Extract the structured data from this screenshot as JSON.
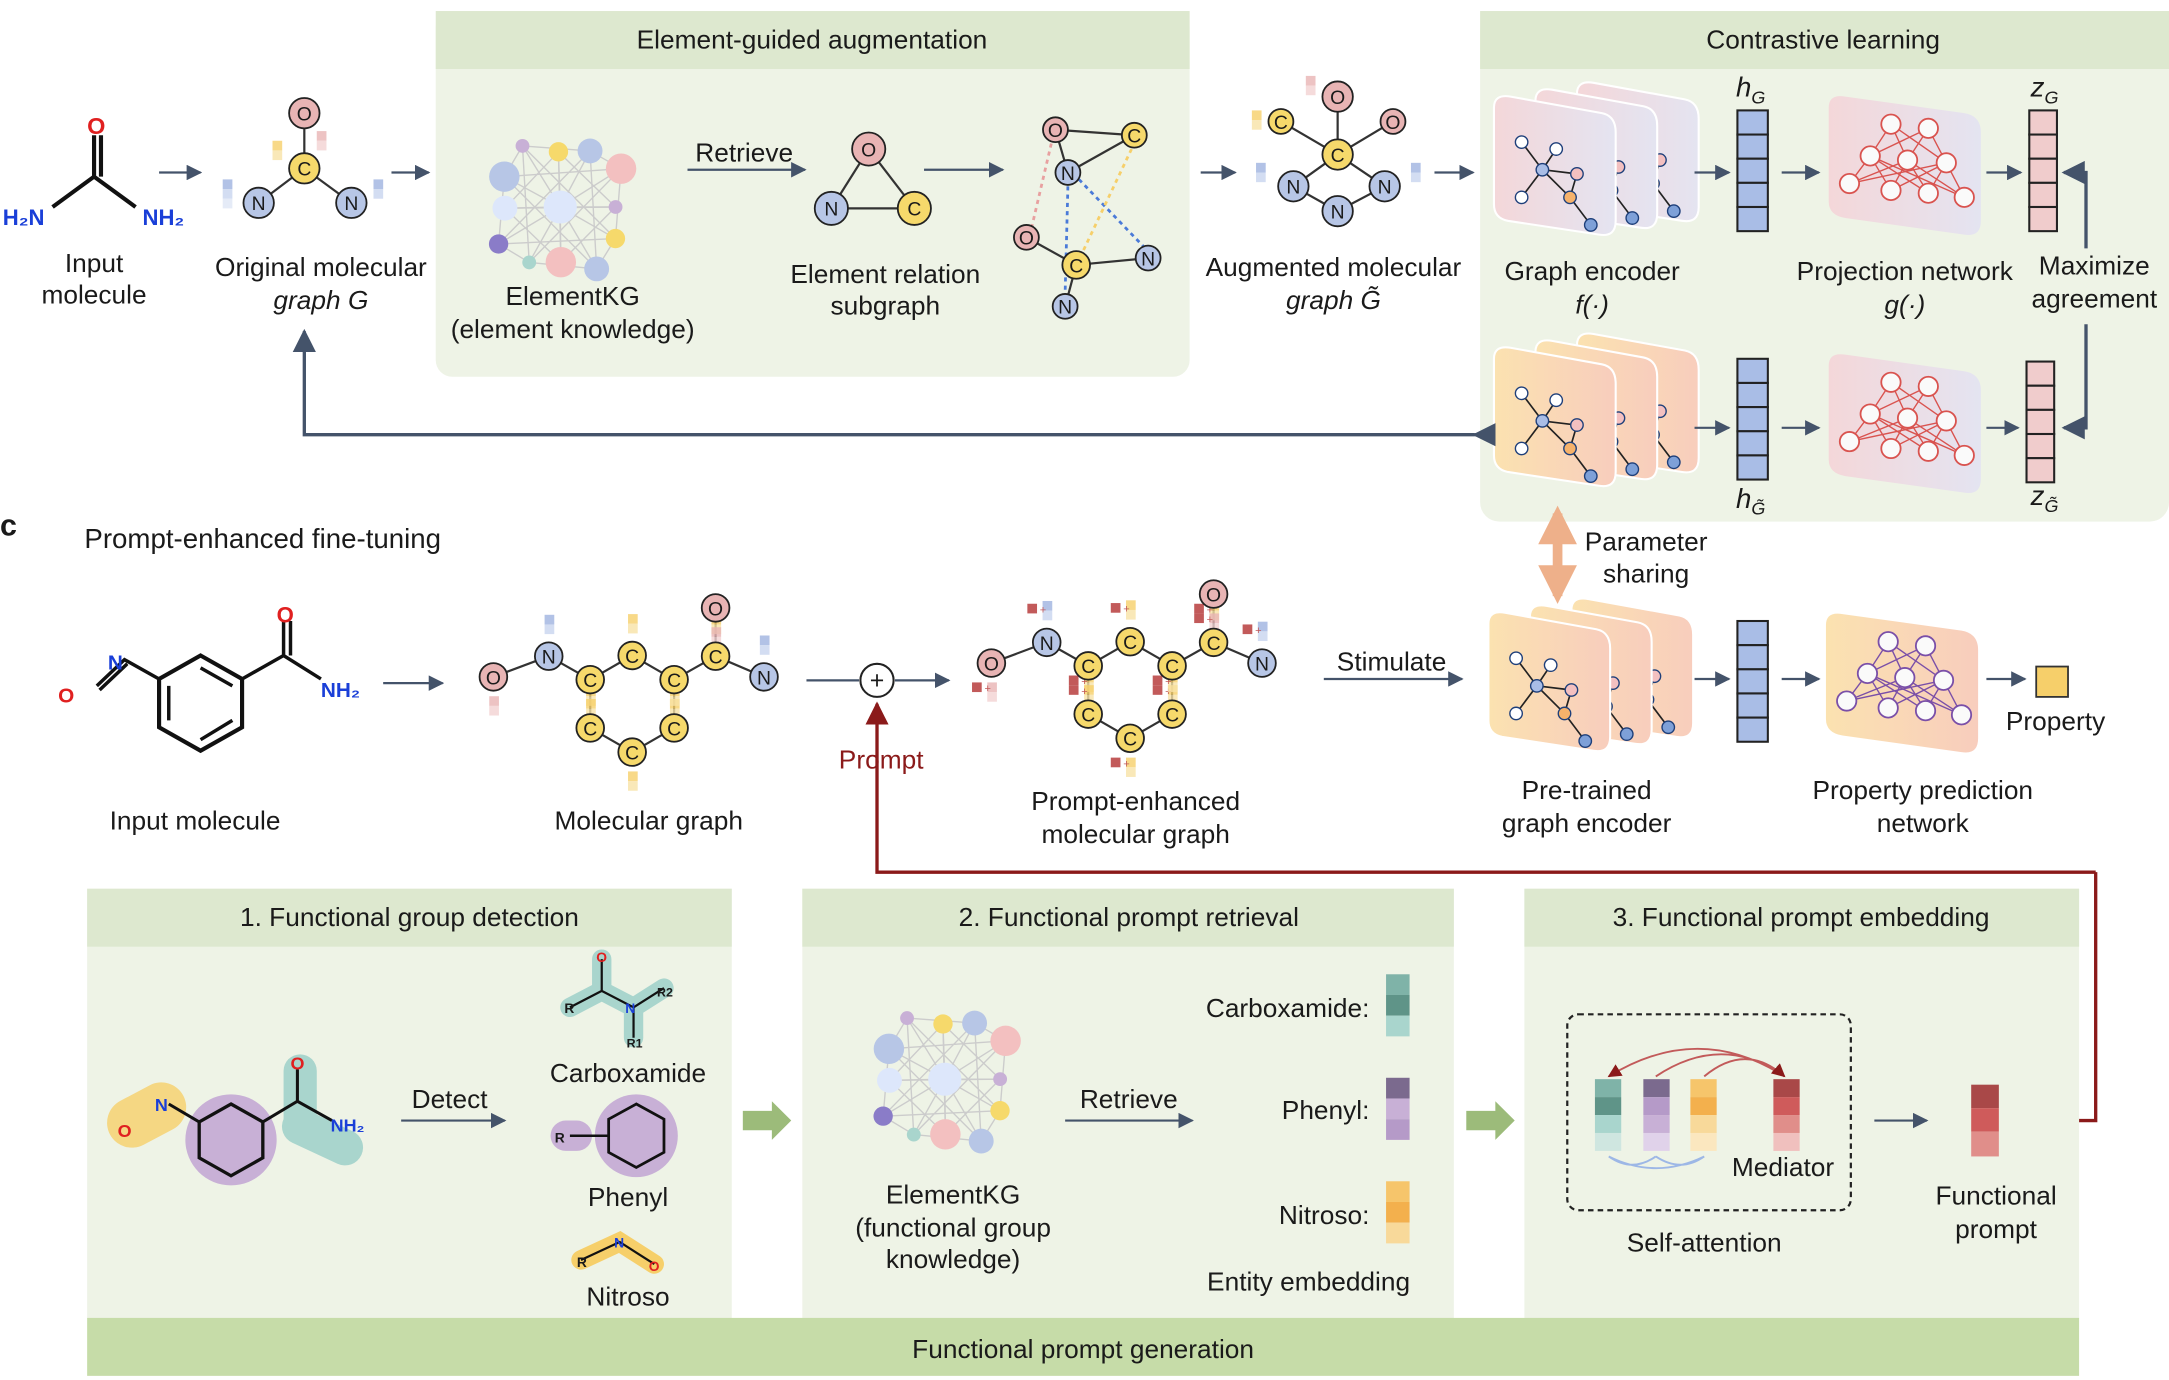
{
  "colors": {
    "panel_bg": "#eef3e6",
    "panel_header": "#dde8cf",
    "footer": "#c6dca8",
    "arrow": "#44536a",
    "prompt_red": "#8b1a1a",
    "oxygen": "#e8b4b4",
    "carbon": "#f6d96b",
    "nitrogen": "#b7c6e6",
    "h_vector": "#a9bde6",
    "z_vector": "#f0cccc",
    "property": "#f6cf6a"
  },
  "atoms": {
    "O": "O",
    "C": "C",
    "N": "N"
  },
  "chem": {
    "h2n": "H₂N",
    "nh2": "NH₂",
    "o": "O",
    "n": "N",
    "r": "R",
    "r1": "R1",
    "r2": "R2"
  },
  "panel_b": {
    "input_label": [
      "Input",
      "molecule"
    ],
    "original_label": [
      "Original molecular",
      "graph G"
    ],
    "augmentation_title": "Element-guided augmentation",
    "elementkg_label": [
      "ElementKG",
      "(element knowledge)"
    ],
    "retrieve": "Retrieve",
    "subgraph_label": [
      "Element relation",
      "subgraph"
    ],
    "augmented_label": [
      "Augmented molecular",
      "graph G̃"
    ],
    "contrastive_title": "Contrastive learning",
    "h_g": "h",
    "h_g_sub": "G",
    "h_gt_sub": "G̃",
    "z_g": "z",
    "encoder_label": [
      "Graph encoder",
      "f(·)"
    ],
    "projection_label": [
      "Projection network",
      "g(·)"
    ],
    "maximize_label": [
      "Maximize",
      "agreement"
    ],
    "parameter_sharing": [
      "Parameter",
      "sharing"
    ]
  },
  "panel_c": {
    "letter": "c",
    "title": "Prompt-enhanced fine-tuning",
    "input_label": "Input molecule",
    "graph_label": "Molecular graph",
    "plus": "+",
    "prompt": "Prompt",
    "enhanced_label": [
      "Prompt-enhanced",
      "molecular graph"
    ],
    "stimulate": "Stimulate",
    "pretrained_label": [
      "Pre-trained",
      "graph encoder"
    ],
    "prediction_label": [
      "Property prediction",
      "network"
    ],
    "property": "Property"
  },
  "steps": [
    {
      "title": "1. Functional group detection",
      "detect": "Detect",
      "groups": [
        "Carboxamide",
        "Phenyl",
        "Nitroso"
      ]
    },
    {
      "title": "2. Functional prompt retrieval",
      "kg_label": [
        "ElementKG",
        "(functional group",
        "knowledge)"
      ],
      "retrieve": "Retrieve",
      "entities": [
        "Carboxamide:",
        "Phenyl:",
        "Nitroso:"
      ],
      "entity_embedding": "Entity embedding"
    },
    {
      "title": "3. Functional prompt embedding",
      "mediator": "Mediator",
      "self_attention": "Self-attention",
      "output_label": [
        "Functional",
        "prompt"
      ]
    }
  ],
  "footer": "Functional prompt generation"
}
